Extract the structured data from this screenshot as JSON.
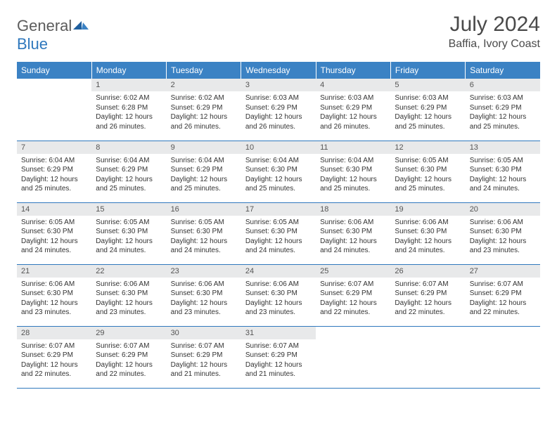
{
  "logo": {
    "word1": "General",
    "word2": "Blue"
  },
  "title": "July 2024",
  "location": "Baffia, Ivory Coast",
  "colors": {
    "header_bg": "#3b82c4",
    "header_text": "#ffffff",
    "rule": "#2f78bd",
    "daynum_bg": "#e8e9ea",
    "logo_gray": "#5c5c5c",
    "logo_blue": "#2f78bd"
  },
  "weekdays": [
    "Sunday",
    "Monday",
    "Tuesday",
    "Wednesday",
    "Thursday",
    "Friday",
    "Saturday"
  ],
  "weeks": [
    [
      {
        "n": "",
        "sr": "",
        "ss": "",
        "dl": ""
      },
      {
        "n": "1",
        "sr": "6:02 AM",
        "ss": "6:28 PM",
        "dl": "12 hours and 26 minutes."
      },
      {
        "n": "2",
        "sr": "6:02 AM",
        "ss": "6:29 PM",
        "dl": "12 hours and 26 minutes."
      },
      {
        "n": "3",
        "sr": "6:03 AM",
        "ss": "6:29 PM",
        "dl": "12 hours and 26 minutes."
      },
      {
        "n": "4",
        "sr": "6:03 AM",
        "ss": "6:29 PM",
        "dl": "12 hours and 26 minutes."
      },
      {
        "n": "5",
        "sr": "6:03 AM",
        "ss": "6:29 PM",
        "dl": "12 hours and 25 minutes."
      },
      {
        "n": "6",
        "sr": "6:03 AM",
        "ss": "6:29 PM",
        "dl": "12 hours and 25 minutes."
      }
    ],
    [
      {
        "n": "7",
        "sr": "6:04 AM",
        "ss": "6:29 PM",
        "dl": "12 hours and 25 minutes."
      },
      {
        "n": "8",
        "sr": "6:04 AM",
        "ss": "6:29 PM",
        "dl": "12 hours and 25 minutes."
      },
      {
        "n": "9",
        "sr": "6:04 AM",
        "ss": "6:29 PM",
        "dl": "12 hours and 25 minutes."
      },
      {
        "n": "10",
        "sr": "6:04 AM",
        "ss": "6:30 PM",
        "dl": "12 hours and 25 minutes."
      },
      {
        "n": "11",
        "sr": "6:04 AM",
        "ss": "6:30 PM",
        "dl": "12 hours and 25 minutes."
      },
      {
        "n": "12",
        "sr": "6:05 AM",
        "ss": "6:30 PM",
        "dl": "12 hours and 25 minutes."
      },
      {
        "n": "13",
        "sr": "6:05 AM",
        "ss": "6:30 PM",
        "dl": "12 hours and 24 minutes."
      }
    ],
    [
      {
        "n": "14",
        "sr": "6:05 AM",
        "ss": "6:30 PM",
        "dl": "12 hours and 24 minutes."
      },
      {
        "n": "15",
        "sr": "6:05 AM",
        "ss": "6:30 PM",
        "dl": "12 hours and 24 minutes."
      },
      {
        "n": "16",
        "sr": "6:05 AM",
        "ss": "6:30 PM",
        "dl": "12 hours and 24 minutes."
      },
      {
        "n": "17",
        "sr": "6:05 AM",
        "ss": "6:30 PM",
        "dl": "12 hours and 24 minutes."
      },
      {
        "n": "18",
        "sr": "6:06 AM",
        "ss": "6:30 PM",
        "dl": "12 hours and 24 minutes."
      },
      {
        "n": "19",
        "sr": "6:06 AM",
        "ss": "6:30 PM",
        "dl": "12 hours and 24 minutes."
      },
      {
        "n": "20",
        "sr": "6:06 AM",
        "ss": "6:30 PM",
        "dl": "12 hours and 23 minutes."
      }
    ],
    [
      {
        "n": "21",
        "sr": "6:06 AM",
        "ss": "6:30 PM",
        "dl": "12 hours and 23 minutes."
      },
      {
        "n": "22",
        "sr": "6:06 AM",
        "ss": "6:30 PM",
        "dl": "12 hours and 23 minutes."
      },
      {
        "n": "23",
        "sr": "6:06 AM",
        "ss": "6:30 PM",
        "dl": "12 hours and 23 minutes."
      },
      {
        "n": "24",
        "sr": "6:06 AM",
        "ss": "6:30 PM",
        "dl": "12 hours and 23 minutes."
      },
      {
        "n": "25",
        "sr": "6:07 AM",
        "ss": "6:29 PM",
        "dl": "12 hours and 22 minutes."
      },
      {
        "n": "26",
        "sr": "6:07 AM",
        "ss": "6:29 PM",
        "dl": "12 hours and 22 minutes."
      },
      {
        "n": "27",
        "sr": "6:07 AM",
        "ss": "6:29 PM",
        "dl": "12 hours and 22 minutes."
      }
    ],
    [
      {
        "n": "28",
        "sr": "6:07 AM",
        "ss": "6:29 PM",
        "dl": "12 hours and 22 minutes."
      },
      {
        "n": "29",
        "sr": "6:07 AM",
        "ss": "6:29 PM",
        "dl": "12 hours and 22 minutes."
      },
      {
        "n": "30",
        "sr": "6:07 AM",
        "ss": "6:29 PM",
        "dl": "12 hours and 21 minutes."
      },
      {
        "n": "31",
        "sr": "6:07 AM",
        "ss": "6:29 PM",
        "dl": "12 hours and 21 minutes."
      },
      {
        "n": "",
        "sr": "",
        "ss": "",
        "dl": ""
      },
      {
        "n": "",
        "sr": "",
        "ss": "",
        "dl": ""
      },
      {
        "n": "",
        "sr": "",
        "ss": "",
        "dl": ""
      }
    ]
  ],
  "labels": {
    "sunrise": "Sunrise:",
    "sunset": "Sunset:",
    "daylight": "Daylight:"
  }
}
